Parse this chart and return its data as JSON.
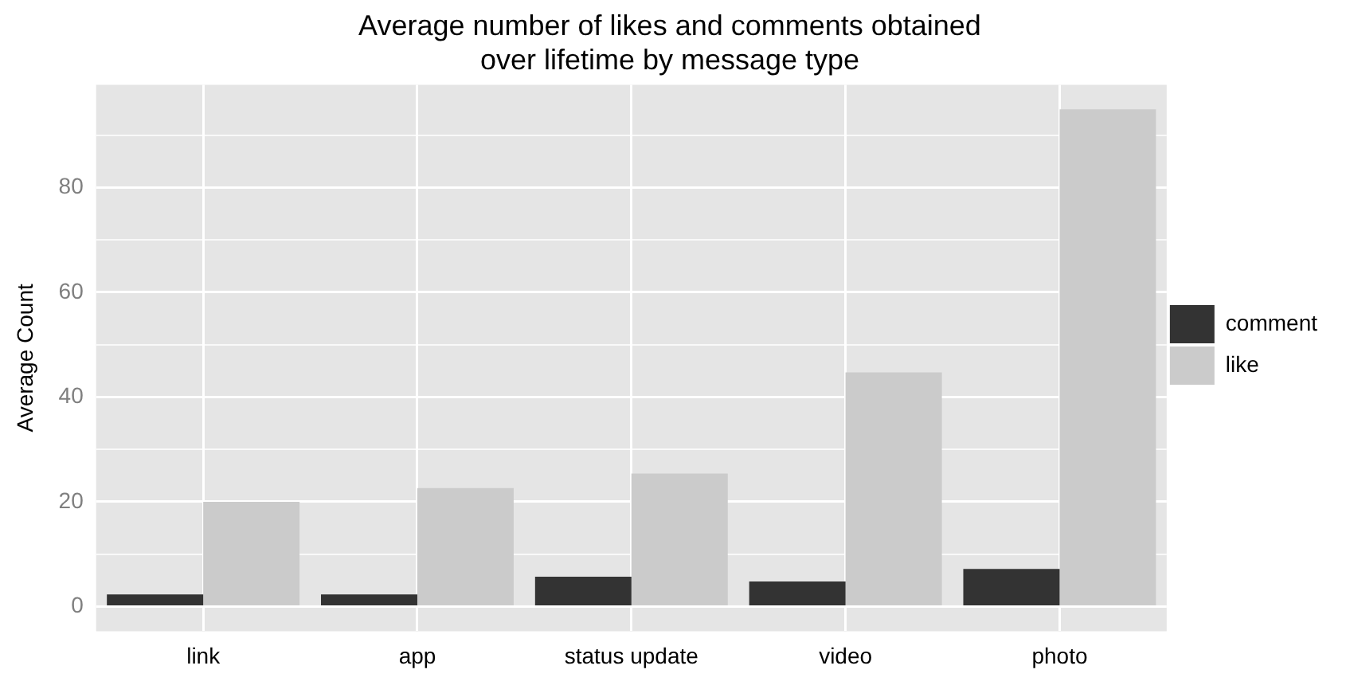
{
  "chart_data": {
    "type": "bar",
    "title": [
      "Average number of likes and comments obtained",
      "over lifetime by message type"
    ],
    "ylabel": "Average Count",
    "categories": [
      "link",
      "app",
      "status update",
      "video",
      "photo"
    ],
    "series": [
      {
        "name": "comment",
        "color": "#333333",
        "values": [
          2.3,
          2.3,
          5.7,
          4.8,
          7.2
        ]
      },
      {
        "name": "like",
        "color": "#cbcbcb",
        "values": [
          20,
          22.6,
          25.4,
          44.7,
          94.9
        ]
      }
    ],
    "ylim": [
      -4.7,
      99.6
    ],
    "yticks": [
      0,
      {
        "value": 10,
        "label": null
      },
      20,
      {
        "value": 30,
        "label": null
      },
      40,
      {
        "value": 50,
        "label": null
      },
      60,
      {
        "value": 70,
        "label": null
      },
      80,
      {
        "value": 90,
        "label": null
      }
    ],
    "grid": true,
    "legend": "right"
  }
}
